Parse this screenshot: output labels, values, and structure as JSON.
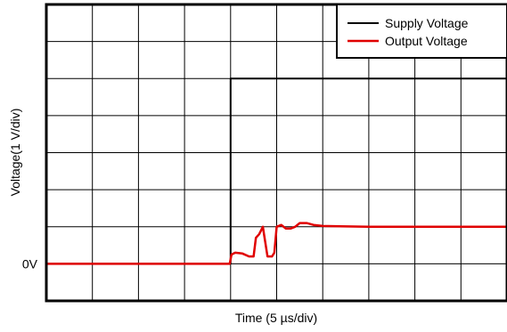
{
  "chart_data": {
    "type": "line",
    "title": "",
    "xlabel": "Time (5 µs/div)",
    "ylabel": "Voltage(1 V/div)",
    "x_unit": "div",
    "y_unit": "div",
    "xlim": [
      0,
      10
    ],
    "ylim": [
      -1,
      7
    ],
    "grid": true,
    "legend_position": "top-right",
    "y_tick_labels": [
      {
        "value": 0,
        "label": "0V"
      }
    ],
    "series": [
      {
        "name": "Supply Voltage",
        "color": "#000000",
        "points": [
          [
            0,
            0
          ],
          [
            4,
            0
          ],
          [
            4,
            5
          ],
          [
            10,
            5
          ]
        ]
      },
      {
        "name": "Output Voltage",
        "color": "#e00000",
        "points": [
          [
            0,
            0
          ],
          [
            3.98,
            0
          ],
          [
            4.02,
            0.25
          ],
          [
            4.1,
            0.3
          ],
          [
            4.25,
            0.28
          ],
          [
            4.4,
            0.2
          ],
          [
            4.5,
            0.2
          ],
          [
            4.55,
            0.7
          ],
          [
            4.62,
            0.8
          ],
          [
            4.7,
            1.0
          ],
          [
            4.75,
            0.6
          ],
          [
            4.8,
            0.2
          ],
          [
            4.9,
            0.2
          ],
          [
            4.95,
            0.3
          ],
          [
            5.0,
            1.0
          ],
          [
            5.1,
            1.05
          ],
          [
            5.2,
            0.95
          ],
          [
            5.3,
            0.95
          ],
          [
            5.4,
            1.0
          ],
          [
            5.5,
            1.1
          ],
          [
            5.65,
            1.1
          ],
          [
            5.8,
            1.05
          ],
          [
            6.0,
            1.02
          ],
          [
            7.0,
            1.0
          ],
          [
            10,
            1.0
          ]
        ]
      }
    ]
  }
}
